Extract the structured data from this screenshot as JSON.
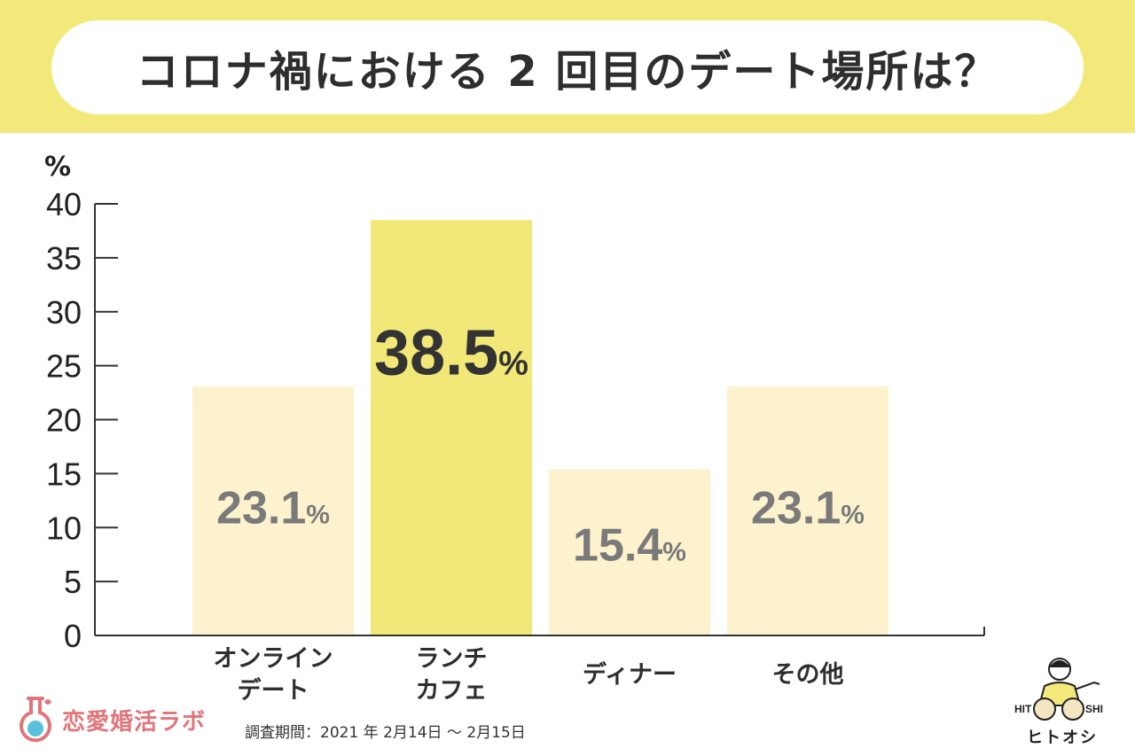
{
  "title": "コロナ禍における 2 回目のデート場所は？",
  "chart_data": {
    "type": "bar",
    "unit_label": "%",
    "ylim": [
      0,
      40
    ],
    "yticks": [
      0,
      5,
      10,
      15,
      20,
      25,
      30,
      35,
      40
    ],
    "categories": [
      [
        "オンライン",
        "デート"
      ],
      [
        "ランチ",
        "カフェ"
      ],
      [
        "ディナー"
      ],
      [
        "その他"
      ]
    ],
    "values": [
      23.1,
      38.5,
      15.4,
      23.1
    ],
    "value_suffix": "%",
    "highlight_index": 1,
    "colors": {
      "bar": "#fcf2cd",
      "bar_highlight": "#f1e877",
      "label": "#7a7a7a",
      "label_highlight": "#333333",
      "axis": "#333333"
    }
  },
  "footer": {
    "brand": "恋愛婚活ラボ",
    "survey_period": "調査期間：2021 年 2月14日 〜 2月15日",
    "mascot_label": "ヒトオシ",
    "mascot_hit": "HIT",
    "mascot_shi": "SHI"
  }
}
